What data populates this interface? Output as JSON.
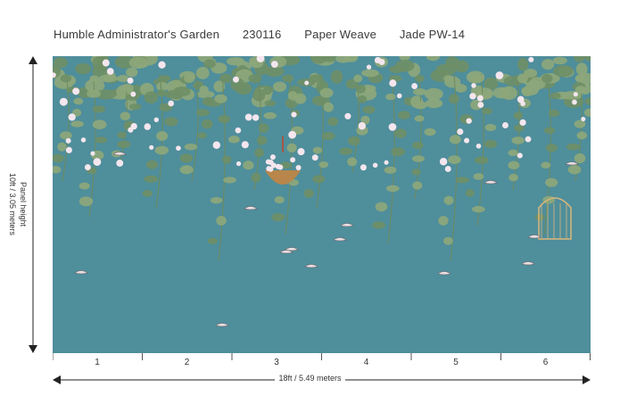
{
  "header": {
    "title": "Humble Administrator's Garden",
    "code": "230116",
    "material": "Paper Weave",
    "colorway": "Jade PW-14"
  },
  "dimensions": {
    "height_label_line1": "Panel height",
    "height_label_line2": "10ft / 3.05 meters",
    "width_label": "18ft / 5.49 meters"
  },
  "panels": [
    "1",
    "2",
    "3",
    "4",
    "5",
    "6"
  ],
  "colors": {
    "background": "#4f8e9b",
    "foliage": "#8ea77a",
    "foliage_dark": "#6f8f66",
    "blossom": "#f4e6ee",
    "basket": "#b8864a",
    "cage": "#d9b77a",
    "ribbon": "#c0452c"
  }
}
